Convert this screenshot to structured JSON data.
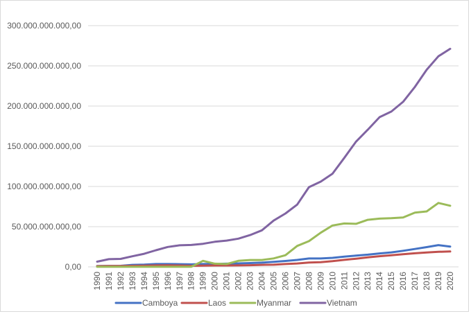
{
  "chart_data": {
    "type": "line",
    "title": "",
    "xlabel": "",
    "ylabel": "",
    "ylim": [
      0,
      300000000000
    ],
    "y_ticks": [
      "0,00",
      "50.000.000.000,00",
      "100.000.000.000,00",
      "150.000.000.000,00",
      "200.000.000.000,00",
      "250.000.000.000,00",
      "300.000.000.000,00"
    ],
    "y_tick_values": [
      0,
      50000000000,
      100000000000,
      150000000000,
      200000000000,
      250000000000,
      300000000000
    ],
    "grid": true,
    "legend_position": "bottom",
    "categories": [
      "1990",
      "1991",
      "1992",
      "1993",
      "1994",
      "1995",
      "1996",
      "1997",
      "1998",
      "1999",
      "2000",
      "2001",
      "2002",
      "2003",
      "2004",
      "2005",
      "2006",
      "2007",
      "2008",
      "2009",
      "2010",
      "2011",
      "2012",
      "2013",
      "2014",
      "2015",
      "2016",
      "2017",
      "2018",
      "2019",
      "2020"
    ],
    "series": [
      {
        "name": "Camboya",
        "color": "#4472c4",
        "values": [
          1000000000.0,
          1200000000.0,
          1300000000.0,
          2500000000.0,
          2800000000.0,
          3500000000.0,
          3500000000.0,
          3400000000.0,
          3100000000.0,
          3500000000.0,
          3700000000.0,
          4000000000.0,
          4300000000.0,
          4700000000.0,
          5300000000.0,
          6300000000.0,
          7300000000.0,
          8600000000.0,
          10400000000.0,
          10400000000.0,
          11200000000.0,
          12800000000.0,
          14000000000.0,
          15200000000.0,
          16700000000.0,
          18000000000.0,
          20000000000.0,
          22200000000.0,
          24600000000.0,
          27100000000.0,
          25300000000.0
        ]
      },
      {
        "name": "Laos",
        "color": "#c0504d",
        "values": [
          900000000.0,
          1000000000.0,
          1100000000.0,
          1300000000.0,
          1500000000.0,
          1800000000.0,
          1900000000.0,
          1700000000.0,
          1300000000.0,
          1500000000.0,
          1700000000.0,
          1700000000.0,
          1800000000.0,
          2100000000.0,
          2500000000.0,
          2700000000.0,
          3500000000.0,
          4200000000.0,
          5400000000.0,
          5800000000.0,
          7100000000.0,
          8700000000.0,
          10200000000.0,
          11900000000.0,
          13300000000.0,
          14400000000.0,
          15800000000.0,
          16900000000.0,
          17900000000.0,
          18700000000.0,
          19100000000.0
        ]
      },
      {
        "name": "Myanmar",
        "color": "#9bbb59",
        "values": [
          100000000.0,
          100000000.0,
          100000000.0,
          100000000.0,
          100000000.0,
          100000000.0,
          100000000.0,
          100000000.0,
          100000000.0,
          7500000000.0,
          4000000000.0,
          3500000000.0,
          7500000000.0,
          8500000000.0,
          8500000000.0,
          10500000000.0,
          14500000000.0,
          26000000000.0,
          32000000000.0,
          42500000000.0,
          51500000000.0,
          54000000000.0,
          53500000000.0,
          58500000000.0,
          60000000000.0,
          60500000000.0,
          61500000000.0,
          67500000000.0,
          69000000000.0,
          79500000000.0,
          76000000000.0
        ]
      },
      {
        "name": "Vietnam",
        "color": "#8064a2",
        "values": [
          6500000000.0,
          9600000000.0,
          9900000000.0,
          13200000000.0,
          16300000000.0,
          20700000000.0,
          24700000000.0,
          26800000000.0,
          27200000000.0,
          28700000000.0,
          31200000000.0,
          32700000000.0,
          35100000000.0,
          39600000000.0,
          45400000000.0,
          57600000000.0,
          66400000000.0,
          77400000000.0,
          99100000000.0,
          106000000000.0,
          115900000000.0,
          135500000000.0,
          155800000000.0,
          170600000000.0,
          186200000000.0,
          193200000000.0,
          205300000000.0,
          223800000000.0,
          245200000000.0,
          261900000000.0,
          271200000000.0
        ]
      }
    ]
  }
}
